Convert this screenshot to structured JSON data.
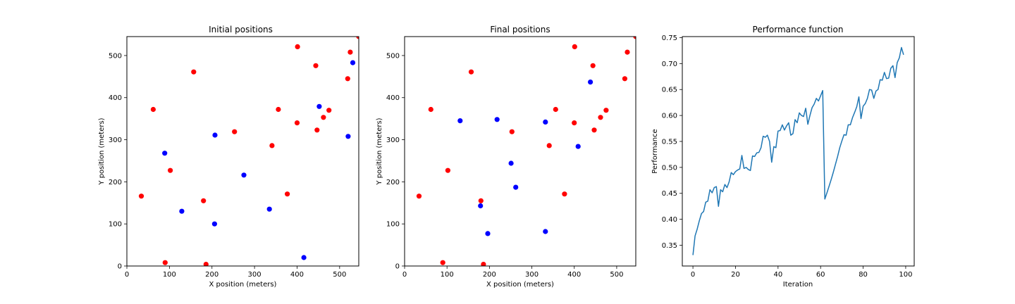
{
  "colors": {
    "red": "#ff0000",
    "blue": "#0000ff",
    "line": "#1f77b4"
  },
  "chart_data": [
    {
      "type": "scatter",
      "title": "Initial positions",
      "xlabel": "X position (meters)",
      "ylabel": "Y position (meters)",
      "xlim": [
        0,
        545
      ],
      "ylim": [
        0,
        545
      ],
      "xticks": [
        0,
        100,
        200,
        300,
        400,
        500
      ],
      "yticks": [
        0,
        100,
        200,
        300,
        400,
        500
      ],
      "series": [
        {
          "color": "red",
          "points": [
            [
              34,
              166
            ],
            [
              62,
              372
            ],
            [
              90,
              8
            ],
            [
              102,
              227
            ],
            [
              157,
              461
            ],
            [
              180,
              155
            ],
            [
              186,
              4
            ],
            [
              253,
              319
            ],
            [
              341,
              286
            ],
            [
              356,
              372
            ],
            [
              377,
              171
            ],
            [
              400,
              340
            ],
            [
              401,
              521
            ],
            [
              444,
              476
            ],
            [
              447,
              323
            ],
            [
              462,
              353
            ],
            [
              475,
              370
            ],
            [
              519,
              445
            ],
            [
              525,
              508
            ],
            [
              545,
              545
            ]
          ]
        },
        {
          "color": "blue",
          "points": [
            [
              89,
              268
            ],
            [
              129,
              130
            ],
            [
              206,
              100
            ],
            [
              207,
              311
            ],
            [
              275,
              216
            ],
            [
              335,
              135
            ],
            [
              416,
              20
            ],
            [
              452,
              379
            ],
            [
              520,
              308
            ],
            [
              531,
              483
            ]
          ]
        }
      ]
    },
    {
      "type": "scatter",
      "title": "Final positions",
      "xlabel": "X position (meters)",
      "ylabel": "Y position (meters)",
      "xlim": [
        0,
        545
      ],
      "ylim": [
        0,
        545
      ],
      "xticks": [
        0,
        100,
        200,
        300,
        400,
        500
      ],
      "yticks": [
        0,
        100,
        200,
        300,
        400,
        500
      ],
      "series": [
        {
          "color": "red",
          "points": [
            [
              34,
              166
            ],
            [
              62,
              372
            ],
            [
              90,
              8
            ],
            [
              102,
              227
            ],
            [
              157,
              461
            ],
            [
              180,
              155
            ],
            [
              186,
              4
            ],
            [
              253,
              319
            ],
            [
              341,
              286
            ],
            [
              356,
              372
            ],
            [
              377,
              171
            ],
            [
              400,
              340
            ],
            [
              401,
              521
            ],
            [
              444,
              476
            ],
            [
              447,
              323
            ],
            [
              462,
              353
            ],
            [
              475,
              370
            ],
            [
              519,
              445
            ],
            [
              525,
              508
            ],
            [
              545,
              545
            ]
          ]
        },
        {
          "color": "blue",
          "points": [
            [
              131,
              345
            ],
            [
              179,
              143
            ],
            [
              196,
              77
            ],
            [
              218,
              348
            ],
            [
              251,
              244
            ],
            [
              262,
              187
            ],
            [
              332,
              342
            ],
            [
              332,
              82
            ],
            [
              409,
              284
            ],
            [
              438,
              437
            ]
          ]
        }
      ]
    },
    {
      "type": "line",
      "title": "Performance function",
      "xlabel": "Iteration",
      "ylabel": "Performance",
      "xlim": [
        -5,
        104
      ],
      "ylim": [
        0.31,
        0.752
      ],
      "xticks": [
        0,
        20,
        40,
        60,
        80,
        100
      ],
      "yticks": [
        0.35,
        0.4,
        0.45,
        0.5,
        0.55,
        0.6,
        0.65,
        0.7,
        0.75
      ],
      "yticklabels": [
        "0.35",
        "0.40",
        "0.45",
        "0.50",
        "0.55",
        "0.60",
        "0.65",
        "0.70",
        "0.75"
      ],
      "series": [
        {
          "color": "line",
          "values": [
            0.331,
            0.368,
            0.381,
            0.397,
            0.411,
            0.415,
            0.433,
            0.435,
            0.457,
            0.451,
            0.461,
            0.463,
            0.425,
            0.457,
            0.453,
            0.467,
            0.461,
            0.472,
            0.49,
            0.486,
            0.492,
            0.495,
            0.497,
            0.523,
            0.498,
            0.5,
            0.496,
            0.494,
            0.522,
            0.521,
            0.528,
            0.529,
            0.538,
            0.56,
            0.558,
            0.562,
            0.55,
            0.51,
            0.54,
            0.538,
            0.57,
            0.571,
            0.582,
            0.572,
            0.58,
            0.586,
            0.562,
            0.565,
            0.592,
            0.586,
            0.605,
            0.6,
            0.598,
            0.614,
            0.583,
            0.6,
            0.615,
            0.622,
            0.633,
            0.628,
            0.638,
            0.648,
            0.439,
            0.451,
            0.464,
            0.477,
            0.491,
            0.506,
            0.521,
            0.538,
            0.551,
            0.563,
            0.562,
            0.582,
            0.582,
            0.596,
            0.606,
            0.617,
            0.636,
            0.594,
            0.618,
            0.623,
            0.633,
            0.65,
            0.649,
            0.633,
            0.647,
            0.65,
            0.669,
            0.668,
            0.683,
            0.671,
            0.672,
            0.691,
            0.696,
            0.673,
            0.702,
            0.711,
            0.731,
            0.717
          ]
        }
      ]
    }
  ]
}
